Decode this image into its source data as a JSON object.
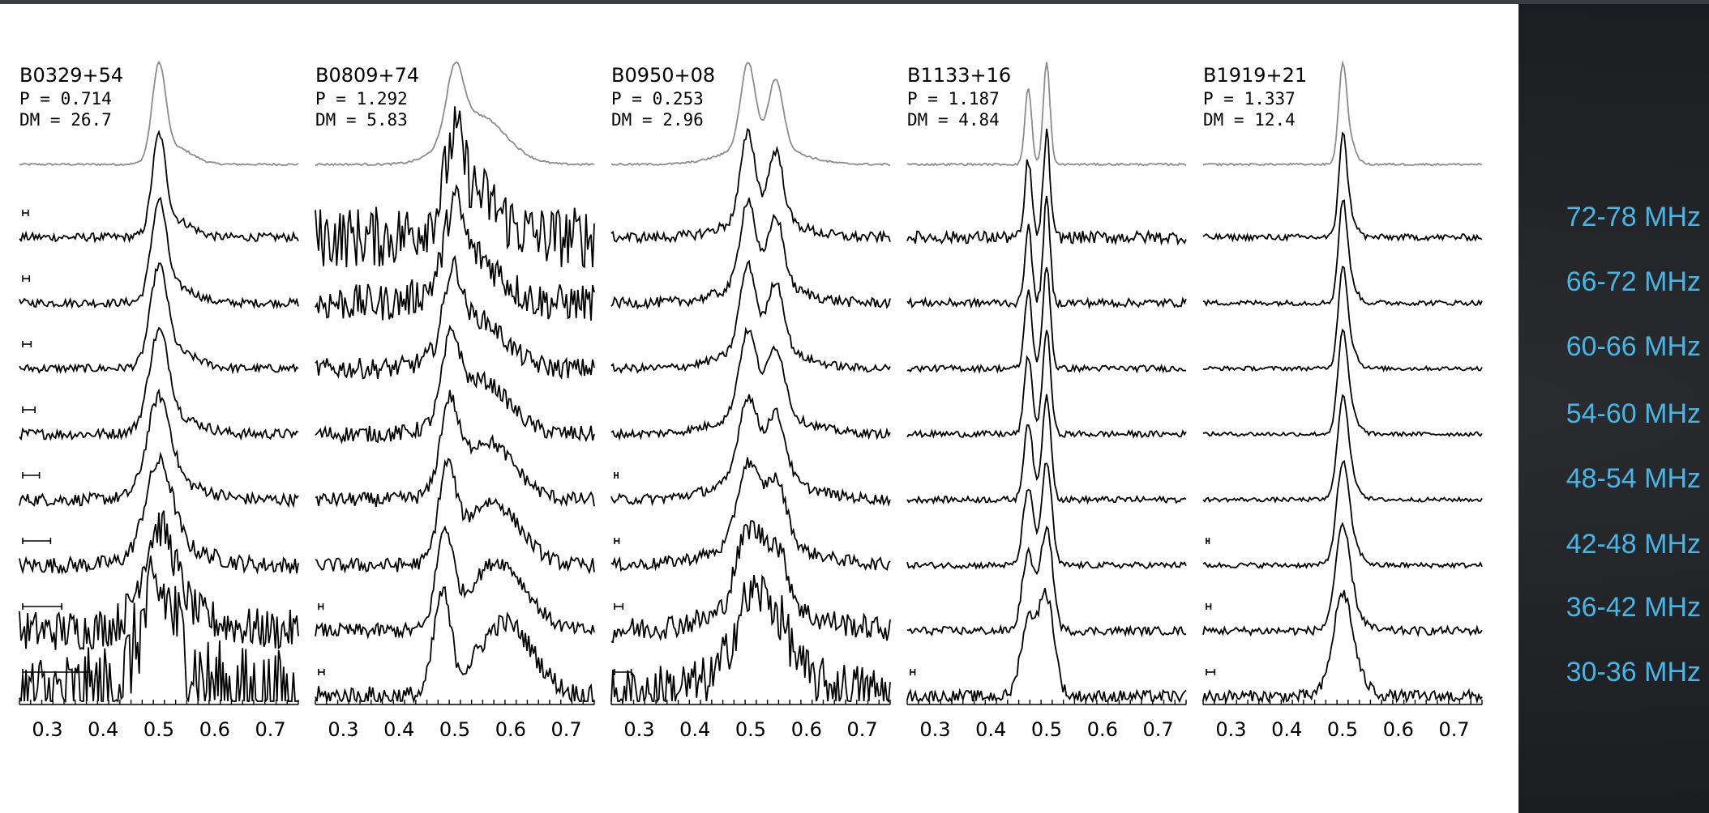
{
  "chart_data": {
    "type": "line",
    "x_ticks": [
      "0.3",
      "0.4",
      "0.5",
      "0.6",
      "0.7"
    ],
    "x_tick_values": [
      0.3,
      0.4,
      0.5,
      0.6,
      0.7
    ],
    "xlim": [
      0.25,
      0.75
    ],
    "colors": {
      "sum_profile": "#8c8c8c",
      "band_profile": "#000000",
      "band_label": "#46b6e6"
    },
    "frequency_bands": [
      "72-78 MHz",
      "66-72 MHz",
      "60-66 MHz",
      "54-60 MHz",
      "48-54 MHz",
      "42-48 MHz",
      "36-42 MHz",
      "30-36 MHz"
    ],
    "pulsars": [
      {
        "name": "B0329+54",
        "period": "P =  0.714",
        "dm": "DM = 26.7",
        "components": [
          {
            "c": 0.5,
            "w": 0.012,
            "a": 1.0
          },
          {
            "c": 0.53,
            "w": 0.03,
            "a": 0.18
          }
        ],
        "noise": [
          0.04,
          0.04,
          0.04,
          0.05,
          0.06,
          0.08,
          0.2,
          0.45
        ],
        "widen": [
          1,
          1.1,
          1.25,
          1.45,
          1.7,
          2.0,
          2.4,
          2.8
        ],
        "error_bar": [
          0.01,
          0.012,
          0.015,
          0.022,
          0.03,
          0.05,
          0.07,
          0.12
        ]
      },
      {
        "name": "B0809+74",
        "period": "P =  1.292",
        "dm": "DM = 5.83",
        "components": [
          {
            "c": 0.5,
            "w": 0.015,
            "a": 1.0
          },
          {
            "c": 0.54,
            "w": 0.05,
            "a": 0.75
          }
        ],
        "noise": [
          0.3,
          0.18,
          0.1,
          0.08,
          0.07,
          0.07,
          0.07,
          0.1
        ],
        "widen": [
          1,
          1,
          1,
          1,
          1,
          1,
          1,
          1
        ],
        "sep_shift": [
          0,
          0.005,
          0.012,
          0.02,
          0.03,
          0.04,
          0.052,
          0.065
        ],
        "error_bar": [
          0,
          0,
          0,
          0,
          0,
          0,
          0.008,
          0.01
        ]
      },
      {
        "name": "B0950+08",
        "period": "P =  0.253",
        "dm": "DM = 2.96",
        "components": [
          {
            "c": 0.495,
            "w": 0.013,
            "a": 1.0
          },
          {
            "c": 0.545,
            "w": 0.013,
            "a": 0.8
          },
          {
            "c": 0.52,
            "w": 0.06,
            "a": 0.25
          }
        ],
        "noise": [
          0.05,
          0.05,
          0.04,
          0.04,
          0.05,
          0.06,
          0.12,
          0.25
        ],
        "widen": [
          1,
          1.05,
          1.1,
          1.2,
          1.3,
          1.45,
          1.7,
          2.2
        ],
        "error_bar": [
          0,
          0,
          0,
          0,
          0.006,
          0.008,
          0.015,
          0.03
        ]
      },
      {
        "name": "B1133+16",
        "period": "P =  1.187",
        "dm": "DM = 4.84",
        "components": [
          {
            "c": 0.467,
            "w": 0.006,
            "a": 0.75
          },
          {
            "c": 0.5,
            "w": 0.006,
            "a": 1.0
          }
        ],
        "noise": [
          0.06,
          0.04,
          0.03,
          0.03,
          0.03,
          0.03,
          0.04,
          0.06
        ],
        "widen": [
          1,
          1,
          1.1,
          1.2,
          1.3,
          1.5,
          1.8,
          2.3
        ],
        "error_bar": [
          0,
          0,
          0,
          0,
          0,
          0,
          0,
          0.008
        ]
      },
      {
        "name": "B1919+21",
        "period": "P =  1.337",
        "dm": "DM = 12.4",
        "components": [
          {
            "c": 0.5,
            "w": 0.007,
            "a": 1.0
          },
          {
            "c": 0.51,
            "w": 0.012,
            "a": 0.3
          }
        ],
        "noise": [
          0.03,
          0.025,
          0.02,
          0.02,
          0.02,
          0.025,
          0.04,
          0.06
        ],
        "widen": [
          1,
          1.05,
          1.1,
          1.2,
          1.3,
          1.5,
          1.8,
          2.3
        ],
        "error_bar": [
          0,
          0,
          0,
          0,
          0,
          0.005,
          0.008,
          0.015
        ]
      }
    ]
  }
}
